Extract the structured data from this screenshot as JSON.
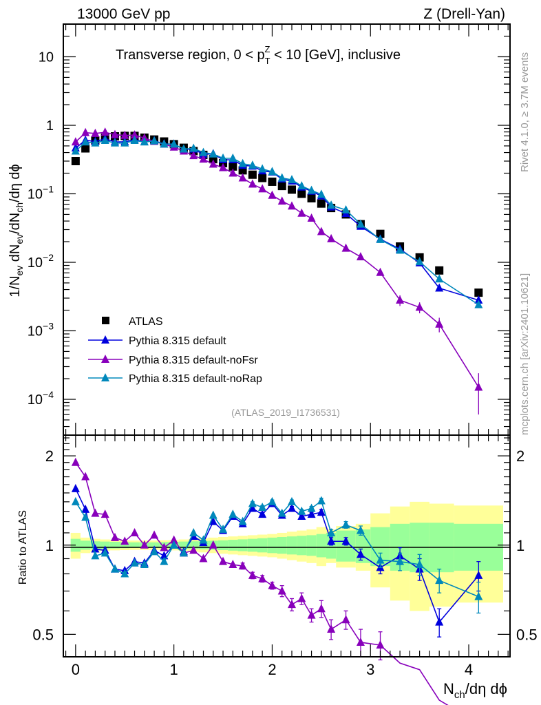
{
  "header": {
    "left": "13000 GeV pp",
    "right": "Z (Drell-Yan)"
  },
  "side_text": {
    "rivet": "Rivet 4.1.0, ≥ 3.7M events",
    "mcplots": "mcplots.cern.ch [arXiv:2401.10621]"
  },
  "chart_data": [
    {
      "type": "scatter",
      "title": "Transverse region, 0 < p_T^Z < 10 [GeV], inclusive",
      "analysis_label": "(ATLAS_2019_I1736531)",
      "xlabel": "N_ch/dη dφ",
      "ylabel": "1/N_ev dN_ev/dN_ch/dη dφ",
      "yscale": "log",
      "xlim": [
        -0.125,
        4.42
      ],
      "ylim": [
        3e-05,
        30
      ],
      "x_ticks": [
        "0",
        "1",
        "2",
        "3",
        "4"
      ],
      "y_ticks": [
        "10^-4",
        "10^-3",
        "10^-2",
        "10^-1",
        "1",
        "10"
      ],
      "legend_position": "middle-left",
      "x": [
        0.0,
        0.1,
        0.2,
        0.3,
        0.4,
        0.5,
        0.6,
        0.7,
        0.8,
        0.9,
        1.0,
        1.1,
        1.2,
        1.3,
        1.4,
        1.5,
        1.6,
        1.7,
        1.8,
        1.9,
        2.0,
        2.1,
        2.2,
        2.3,
        2.4,
        2.5,
        2.6,
        2.75,
        2.9,
        3.1,
        3.3,
        3.5,
        3.7,
        4.1
      ],
      "series": [
        {
          "name": "ATLAS",
          "marker": "square",
          "color": "#000000",
          "values": [
            0.3,
            0.46,
            0.6,
            0.66,
            0.69,
            0.7,
            0.7,
            0.66,
            0.62,
            0.58,
            0.53,
            0.47,
            0.42,
            0.37,
            0.32,
            0.28,
            0.25,
            0.22,
            0.19,
            0.17,
            0.15,
            0.13,
            0.115,
            0.1,
            0.086,
            0.072,
            0.062,
            0.05,
            0.036,
            0.026,
            0.017,
            0.0118,
            0.0076,
            0.0036
          ]
        },
        {
          "name": "Pythia 8.315 default",
          "marker": "triangle",
          "color": "#0000dd",
          "values": [
            0.465,
            0.605,
            0.58,
            0.634,
            0.572,
            0.574,
            0.616,
            0.574,
            0.595,
            0.534,
            0.53,
            0.446,
            0.449,
            0.377,
            0.384,
            0.314,
            0.313,
            0.26,
            0.253,
            0.216,
            0.207,
            0.164,
            0.153,
            0.125,
            0.109,
            0.093,
            0.064,
            0.0515,
            0.0335,
            0.0218,
            0.0156,
            0.0098,
            0.0042,
            0.0028
          ]
        },
        {
          "name": "Pythia 8.315 default-noFsr",
          "marker": "triangle",
          "color": "#8800bb",
          "values": [
            0.57,
            0.78,
            0.76,
            0.79,
            0.73,
            0.71,
            0.72,
            0.65,
            0.58,
            0.53,
            0.48,
            0.42,
            0.36,
            0.32,
            0.27,
            0.24,
            0.2,
            0.17,
            0.138,
            0.118,
            0.095,
            0.078,
            0.066,
            0.052,
            0.044,
            0.028,
            0.022,
            0.016,
            0.012,
            0.0071,
            0.0028,
            0.0022,
            0.00125,
            0.00015
          ]
        },
        {
          "name": "Pythia 8.315 default-noRap",
          "marker": "triangle",
          "color": "#0088bb",
          "values": [
            0.42,
            0.57,
            0.55,
            0.6,
            0.55,
            0.55,
            0.6,
            0.57,
            0.59,
            0.53,
            0.53,
            0.45,
            0.46,
            0.4,
            0.38,
            0.33,
            0.33,
            0.275,
            0.26,
            0.23,
            0.21,
            0.17,
            0.16,
            0.13,
            0.112,
            0.098,
            0.068,
            0.058,
            0.036,
            0.0215,
            0.015,
            0.0102,
            0.0057,
            0.0024
          ]
        }
      ]
    },
    {
      "type": "scatter",
      "ylabel": "Ratio to ATLAS",
      "xlabel": "N_ch/dη dφ",
      "yscale": "log",
      "xlim": [
        -0.125,
        4.42
      ],
      "ylim": [
        0.42,
        2.35
      ],
      "y_ticks": [
        "0.5",
        "1",
        "2"
      ],
      "x_ticks": [
        "0",
        "1",
        "2",
        "3",
        "4"
      ],
      "reference_line": 1.0,
      "band_colors": {
        "inner": "#99ff99",
        "outer": "#ffff99"
      },
      "bands": {
        "x_edges": [
          -0.05,
          0.05,
          0.15,
          0.25,
          0.35,
          0.45,
          0.55,
          0.65,
          0.75,
          0.85,
          0.95,
          1.05,
          1.15,
          1.25,
          1.35,
          1.45,
          1.55,
          1.65,
          1.75,
          1.85,
          1.95,
          2.05,
          2.15,
          2.25,
          2.35,
          2.45,
          2.55,
          2.65,
          2.85,
          3.0,
          3.2,
          3.4,
          3.6,
          3.85,
          4.35
        ],
        "inner_half_width": [
          0.05,
          0.035,
          0.03,
          0.028,
          0.026,
          0.024,
          0.022,
          0.022,
          0.022,
          0.024,
          0.026,
          0.028,
          0.03,
          0.032,
          0.035,
          0.038,
          0.042,
          0.046,
          0.05,
          0.055,
          0.06,
          0.065,
          0.07,
          0.075,
          0.08,
          0.09,
          0.1,
          0.12,
          0.13,
          0.15,
          0.18,
          0.19,
          0.19,
          0.18
        ],
        "outer_half_width": [
          0.1,
          0.06,
          0.05,
          0.045,
          0.04,
          0.038,
          0.036,
          0.036,
          0.036,
          0.038,
          0.04,
          0.045,
          0.05,
          0.055,
          0.06,
          0.065,
          0.07,
          0.075,
          0.08,
          0.085,
          0.09,
          0.1,
          0.11,
          0.12,
          0.13,
          0.15,
          0.13,
          0.16,
          0.18,
          0.28,
          0.35,
          0.4,
          0.38,
          0.36
        ]
      },
      "series": [
        {
          "name": "Pythia 8.315 default",
          "color": "#0000dd",
          "values": [
            1.55,
            1.32,
            0.97,
            0.96,
            0.83,
            0.82,
            0.88,
            0.87,
            0.96,
            0.92,
            1.0,
            0.95,
            1.07,
            1.02,
            1.2,
            1.12,
            1.25,
            1.18,
            1.33,
            1.27,
            1.38,
            1.26,
            1.33,
            1.25,
            1.27,
            1.29,
            1.03,
            1.03,
            0.93,
            0.84,
            0.92,
            0.83,
            0.55,
            0.79
          ],
          "errors": [
            0.01,
            0.01,
            0.01,
            0.01,
            0.01,
            0.01,
            0.01,
            0.01,
            0.01,
            0.01,
            0.01,
            0.01,
            0.01,
            0.01,
            0.01,
            0.01,
            0.01,
            0.01,
            0.02,
            0.02,
            0.02,
            0.02,
            0.02,
            0.02,
            0.02,
            0.03,
            0.03,
            0.03,
            0.04,
            0.04,
            0.06,
            0.07,
            0.06,
            0.09
          ]
        },
        {
          "name": "Pythia 8.315 default-noFsr",
          "color": "#8800bb",
          "values": [
            1.9,
            1.7,
            1.28,
            1.27,
            1.06,
            1.03,
            1.1,
            1.0,
            1.08,
            0.98,
            1.04,
            0.94,
            0.96,
            0.9,
            1.0,
            0.88,
            0.86,
            0.85,
            0.79,
            0.77,
            0.73,
            0.7,
            0.63,
            0.66,
            0.58,
            0.61,
            0.52,
            0.56,
            0.47,
            0.46,
            0.4,
            0.38,
            0.3,
            0.25
          ],
          "errors": [
            0.01,
            0.01,
            0.01,
            0.01,
            0.01,
            0.01,
            0.01,
            0.01,
            0.01,
            0.01,
            0.01,
            0.01,
            0.01,
            0.01,
            0.01,
            0.01,
            0.01,
            0.02,
            0.02,
            0.02,
            0.02,
            0.03,
            0.03,
            0.03,
            0.03,
            0.04,
            0.04,
            0.04,
            0.05,
            0.05,
            0.05,
            0.06,
            0.06,
            0.07
          ]
        },
        {
          "name": "Pythia 8.315 default-noRap",
          "color": "#0088bb",
          "values": [
            1.4,
            1.24,
            0.92,
            0.94,
            0.83,
            0.8,
            0.87,
            0.86,
            0.95,
            0.88,
            1.0,
            0.94,
            1.1,
            1.04,
            1.26,
            1.13,
            1.27,
            1.2,
            1.38,
            1.34,
            1.4,
            1.28,
            1.4,
            1.3,
            1.33,
            1.41,
            1.1,
            1.17,
            1.12,
            0.89,
            0.88,
            0.86,
            0.76,
            0.67
          ],
          "errors": [
            0.01,
            0.01,
            0.01,
            0.01,
            0.01,
            0.01,
            0.01,
            0.01,
            0.01,
            0.01,
            0.01,
            0.01,
            0.01,
            0.01,
            0.01,
            0.01,
            0.01,
            0.01,
            0.02,
            0.02,
            0.02,
            0.02,
            0.02,
            0.02,
            0.02,
            0.03,
            0.03,
            0.03,
            0.04,
            0.05,
            0.06,
            0.07,
            0.07,
            0.08
          ]
        }
      ]
    }
  ]
}
